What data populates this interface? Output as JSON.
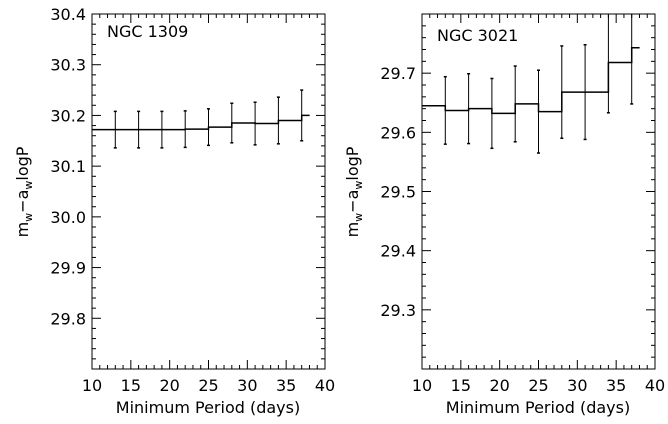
{
  "chart_data": [
    {
      "type": "line",
      "step": true,
      "title": "NGC 1309",
      "xlabel": "Minimum Period (days)",
      "ylabel_main": "m",
      "ylabel_sub1": "w",
      "ylabel_mid": "−a",
      "ylabel_sub2": "w",
      "ylabel_tail": "logP",
      "xlim": [
        10,
        40
      ],
      "ylim": [
        29.7,
        30.4
      ],
      "x_ticks": [
        10,
        15,
        20,
        25,
        30,
        35,
        40
      ],
      "y_ticks": [
        29.8,
        29.9,
        30.0,
        30.1,
        30.2,
        30.3,
        30.4
      ],
      "x_tick_labels": [
        "10",
        "15",
        "20",
        "25",
        "30",
        "35",
        "40"
      ],
      "y_tick_labels": [
        "29.8",
        "29.9",
        "30.0",
        "30.1",
        "30.2",
        "30.3",
        "30.4"
      ],
      "x": [
        10,
        13,
        16,
        19,
        22,
        25,
        28,
        31,
        34,
        37
      ],
      "y": [
        30.172,
        30.172,
        30.172,
        30.172,
        30.173,
        30.177,
        30.185,
        30.184,
        30.19,
        30.2
      ],
      "err": [
        0,
        0.036,
        0.036,
        0.036,
        0.036,
        0.036,
        0.039,
        0.042,
        0.046,
        0.05
      ]
    },
    {
      "type": "line",
      "step": true,
      "title": "NGC 3021",
      "xlabel": "Minimum Period (days)",
      "ylabel_main": "m",
      "ylabel_sub1": "w",
      "ylabel_mid": "−a",
      "ylabel_sub2": "w",
      "ylabel_tail": "logP",
      "xlim": [
        10,
        40
      ],
      "ylim": [
        29.2,
        29.8
      ],
      "x_ticks": [
        10,
        15,
        20,
        25,
        30,
        35,
        40
      ],
      "y_ticks": [
        29.3,
        29.4,
        29.5,
        29.6,
        29.7
      ],
      "x_tick_labels": [
        "10",
        "15",
        "20",
        "25",
        "30",
        "35",
        "40"
      ],
      "y_tick_labels": [
        "29.3",
        "29.4",
        "29.5",
        "29.6",
        "29.7"
      ],
      "x": [
        10,
        13,
        16,
        19,
        22,
        25,
        28,
        31,
        34,
        37
      ],
      "y": [
        29.645,
        29.637,
        29.64,
        29.632,
        29.648,
        29.635,
        29.668,
        29.668,
        29.718,
        29.743
      ],
      "err": [
        0,
        0.057,
        0.059,
        0.059,
        0.064,
        0.07,
        0.078,
        0.08,
        0.085,
        0.095
      ]
    }
  ]
}
